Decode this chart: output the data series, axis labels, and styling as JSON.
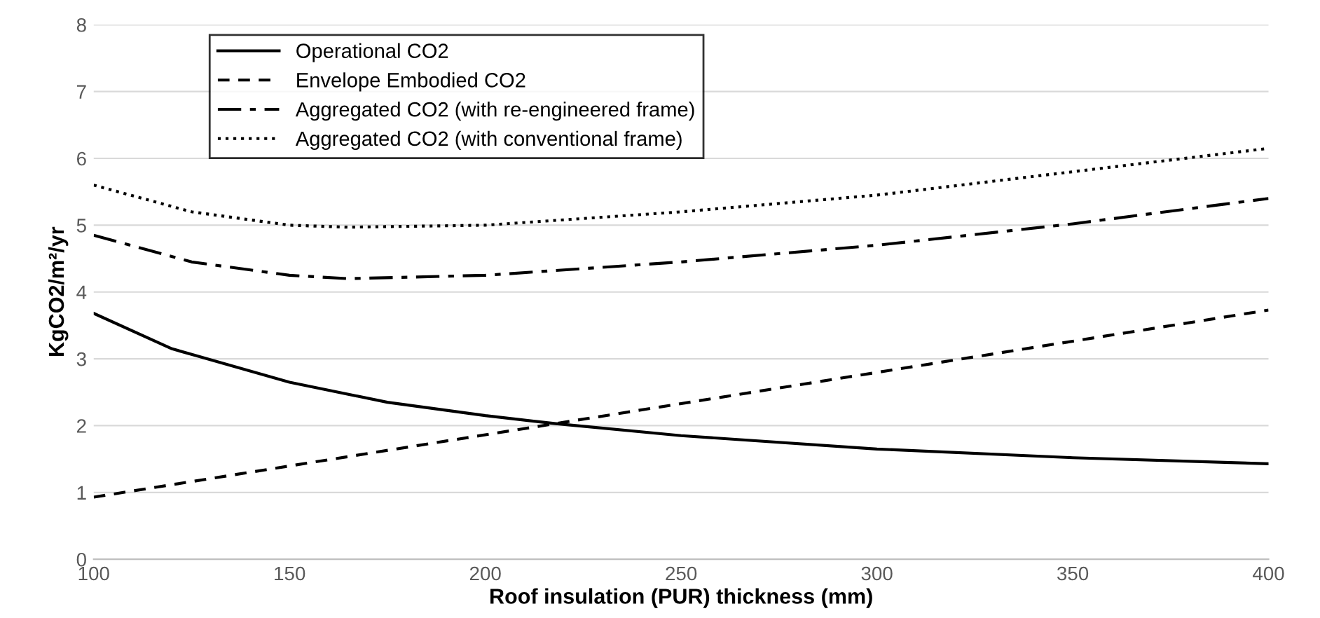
{
  "chart_data": {
    "type": "line",
    "xlabel": "Roof insulation (PUR) thickness (mm)",
    "ylabel": "KgCO2/m²/yr",
    "x": [
      100,
      120,
      150,
      175,
      200,
      218,
      250,
      300,
      350,
      400
    ],
    "series": [
      {
        "name": "Operational CO2",
        "color": "#000000",
        "line_style": "solid",
        "values": [
          3.68,
          3.15,
          2.65,
          2.35,
          2.15,
          2.03,
          1.85,
          1.65,
          1.52,
          1.43
        ]
      },
      {
        "name": "Envelope Embodied CO2",
        "color": "#000000",
        "line_style": "dashed",
        "x": [
          100,
          400
        ],
        "values": [
          0.93,
          3.73
        ]
      },
      {
        "name": "Aggregated CO2 (with re-engineered frame)",
        "color": "#000000",
        "line_style": "dashdot",
        "x": [
          100,
          125,
          150,
          165,
          200,
          250,
          300,
          350,
          400
        ],
        "values": [
          4.85,
          4.45,
          4.25,
          4.2,
          4.25,
          4.45,
          4.7,
          5.02,
          5.4
        ]
      },
      {
        "name": "Aggregated CO2 (with conventional frame)",
        "color": "#000000",
        "line_style": "dotted",
        "x": [
          100,
          125,
          150,
          165,
          200,
          250,
          300,
          350,
          400
        ],
        "values": [
          5.6,
          5.2,
          5.0,
          4.97,
          5.0,
          5.2,
          5.45,
          5.8,
          6.15
        ]
      }
    ],
    "xlim": [
      100,
      400
    ],
    "xticks": [
      100,
      150,
      200,
      250,
      300,
      350,
      400
    ],
    "ylim": [
      0,
      8
    ],
    "yticks": [
      0,
      1,
      2,
      3,
      4,
      5,
      6,
      7,
      8
    ],
    "grid": "y",
    "legend": "top left"
  }
}
